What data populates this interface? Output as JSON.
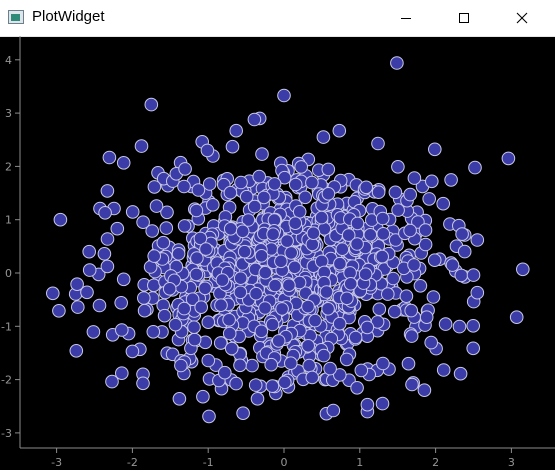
{
  "window": {
    "title": "PlotWidget",
    "icons": {
      "app": "app-icon",
      "minimize": "minimize-icon",
      "maximize": "maximize-icon",
      "close": "close-icon"
    }
  },
  "colors": {
    "background": "#000000",
    "marker_fill": "#3c3ca8",
    "marker_edge": "#c8c8e6",
    "axis": "#8c8c8c",
    "tick_label": "#969696"
  },
  "chart_data": {
    "type": "scatter",
    "title": "",
    "xlabel": "",
    "ylabel": "",
    "xlim": [
      -3.5,
      3.4
    ],
    "ylim": [
      -3.2,
      4.4
    ],
    "xticks": [
      -3,
      -2,
      -1,
      0,
      1,
      2,
      3
    ],
    "yticks": [
      -3,
      -2,
      -1,
      0,
      1,
      2,
      3,
      4
    ],
    "grid": false,
    "distribution": "approximately 2D standard normal, ~1000 points centered at (0,0)",
    "series": [
      {
        "points": [
          [
            1.49,
            3.94
          ],
          [
            0.0,
            3.33
          ],
          [
            -1.75,
            3.16
          ],
          [
            -0.32,
            2.9
          ],
          [
            -0.39,
            2.88
          ],
          [
            -1.88,
            2.38
          ],
          [
            -0.63,
            2.67
          ],
          [
            2.96,
            2.15
          ],
          [
            1.99,
            2.32
          ],
          [
            -0.68,
            2.37
          ],
          [
            -1.01,
            2.3
          ],
          [
            -0.29,
            2.23
          ],
          [
            0.73,
            2.67
          ],
          [
            0.52,
            2.55
          ],
          [
            1.24,
            2.43
          ],
          [
            -2.95,
            1.0
          ],
          [
            -2.33,
            1.54
          ],
          [
            -2.36,
            1.13
          ],
          [
            -2.57,
            0.4
          ],
          [
            -3.05,
            -0.38
          ],
          [
            -2.97,
            -0.71
          ],
          [
            -2.73,
            -0.21
          ],
          [
            -2.72,
            -0.64
          ],
          [
            -2.74,
            -1.46
          ],
          [
            -2.26,
            -1.16
          ],
          [
            -2.14,
            -1.07
          ],
          [
            -2.14,
            -1.88
          ],
          [
            -1.86,
            -1.9
          ],
          [
            -1.86,
            -2.07
          ],
          [
            -1.38,
            -2.36
          ],
          [
            -1.07,
            -2.32
          ],
          [
            -0.99,
            -2.69
          ],
          [
            -0.54,
            -2.63
          ],
          [
            -0.35,
            -2.36
          ],
          [
            0.01,
            -2.05
          ],
          [
            0.56,
            -2.64
          ],
          [
            0.65,
            -2.58
          ],
          [
            1.1,
            -2.6
          ],
          [
            1.1,
            -2.47
          ],
          [
            1.3,
            -2.45
          ],
          [
            2.33,
            -1.89
          ],
          [
            3.15,
            0.07
          ],
          [
            3.07,
            -0.83
          ],
          [
            2.55,
            -0.37
          ],
          [
            2.5,
            -0.04
          ],
          [
            2.35,
            0.73
          ],
          [
            2.55,
            0.62
          ],
          [
            2.1,
            1.3
          ],
          [
            1.95,
            1.72
          ],
          [
            1.72,
            1.78
          ]
        ]
      }
    ]
  }
}
